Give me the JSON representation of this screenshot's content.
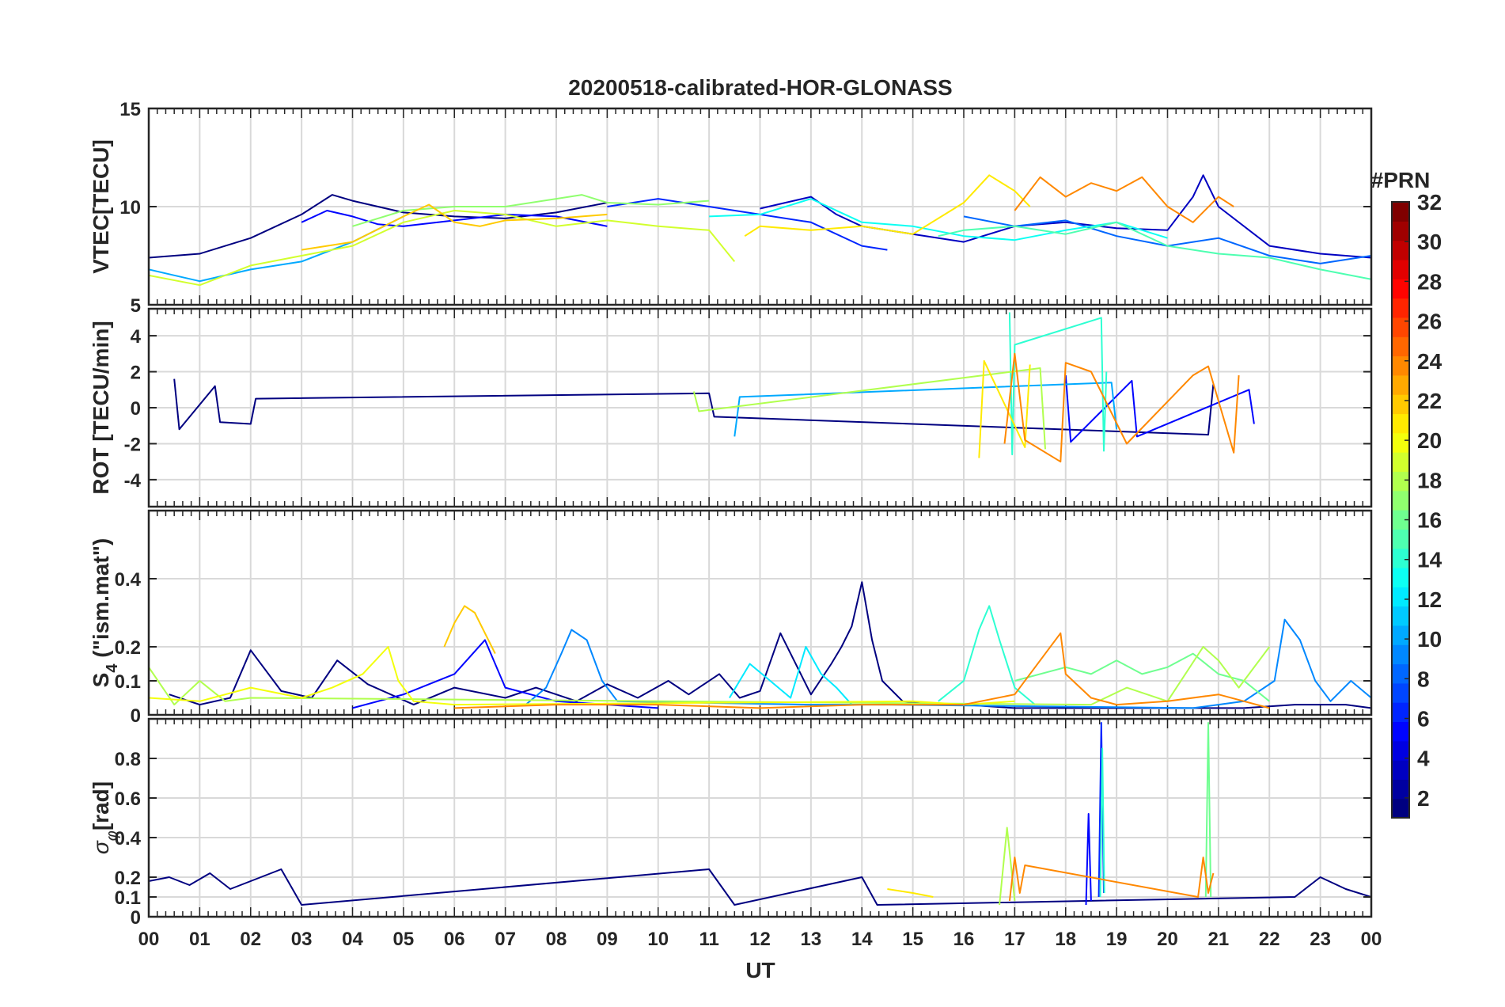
{
  "chart_data": [
    {
      "panel": "vtec",
      "type": "line",
      "title": "20200518-calibrated-HOR-GLONASS",
      "ylabel": "VTEC[TECU]",
      "ylim": [
        5,
        15
      ],
      "yticks": [
        5,
        10,
        15
      ],
      "xlim": [
        0,
        24
      ],
      "grid": true,
      "series": [
        {
          "prn": 1,
          "x": [
            0,
            1,
            2,
            3,
            3.6,
            4,
            5,
            6,
            7,
            8,
            9
          ],
          "y": [
            7.4,
            7.6,
            8.4,
            9.6,
            10.6,
            10.3,
            9.7,
            9.5,
            9.4,
            9.7,
            10.2
          ]
        },
        {
          "prn": 3,
          "x": [
            12,
            12.5,
            13,
            13.5,
            14,
            15,
            16,
            17,
            18,
            19,
            20,
            20.5,
            20.7,
            21,
            22,
            23,
            24
          ],
          "y": [
            9.9,
            10.2,
            10.5,
            9.6,
            9.0,
            8.6,
            8.2,
            9.0,
            9.2,
            8.9,
            8.8,
            10.5,
            11.6,
            10.0,
            8.0,
            7.6,
            7.4
          ]
        },
        {
          "prn": 5,
          "x": [
            3,
            3.5,
            4,
            4.5,
            5,
            6,
            7,
            8,
            9
          ],
          "y": [
            9.2,
            9.8,
            9.5,
            9.1,
            9.0,
            9.3,
            9.6,
            9.5,
            9.0
          ]
        },
        {
          "prn": 6,
          "x": [
            9,
            10,
            11,
            12,
            13,
            14,
            14.5
          ],
          "y": [
            10.0,
            10.4,
            10.0,
            9.6,
            9.2,
            8.0,
            7.8
          ]
        },
        {
          "prn": 8,
          "x": [
            16,
            17,
            18,
            19,
            20,
            21,
            22,
            23,
            24
          ],
          "y": [
            9.5,
            9.0,
            9.3,
            8.5,
            8.0,
            8.4,
            7.5,
            7.1,
            7.5
          ]
        },
        {
          "prn": 10,
          "x": [
            0,
            0.5,
            1,
            2,
            3,
            4,
            5
          ],
          "y": [
            6.8,
            6.5,
            6.2,
            6.8,
            7.2,
            8.2,
            9.5
          ]
        },
        {
          "prn": 13,
          "x": [
            11,
            12,
            13,
            14,
            15,
            16,
            17,
            18,
            19,
            20
          ],
          "y": [
            9.5,
            9.6,
            10.4,
            9.2,
            9.0,
            8.5,
            8.3,
            8.8,
            9.2,
            8.4
          ]
        },
        {
          "prn": 15,
          "x": [
            15.5,
            16,
            17,
            18,
            19,
            20,
            21,
            22,
            23,
            24
          ],
          "y": [
            8.5,
            8.8,
            9.0,
            8.6,
            9.2,
            8.0,
            7.6,
            7.4,
            6.8,
            6.3
          ]
        },
        {
          "prn": 17,
          "x": [
            4,
            5,
            6,
            7,
            8,
            8.5,
            9,
            10,
            11
          ],
          "y": [
            9.0,
            9.8,
            10.0,
            10.0,
            10.4,
            10.6,
            10.2,
            10.1,
            10.3
          ]
        },
        {
          "prn": 19,
          "x": [
            0,
            1,
            2,
            3,
            4,
            5,
            6,
            7,
            8,
            9,
            10,
            11,
            11.5
          ],
          "y": [
            6.5,
            6.0,
            7.0,
            7.5,
            8.0,
            9.2,
            9.8,
            9.6,
            9.0,
            9.3,
            9.0,
            8.8,
            7.2
          ]
        },
        {
          "prn": 21,
          "x": [
            11.7,
            12,
            13,
            14,
            15,
            16,
            16.5,
            17,
            17.3
          ],
          "y": [
            8.5,
            9.0,
            8.8,
            9.0,
            8.6,
            10.2,
            11.6,
            10.8,
            10.0
          ]
        },
        {
          "prn": 22,
          "x": [
            3,
            4,
            5,
            5.5,
            6,
            6.5,
            7,
            8,
            9
          ],
          "y": [
            7.8,
            8.2,
            9.5,
            10.1,
            9.2,
            9.0,
            9.3,
            9.4,
            9.6
          ]
        },
        {
          "prn": 24,
          "x": [
            17,
            17.5,
            18,
            18.5,
            19,
            19.5,
            20,
            20.5,
            21,
            21.3
          ],
          "y": [
            9.8,
            11.5,
            10.5,
            11.2,
            10.8,
            11.5,
            10.0,
            9.2,
            10.5,
            10.0
          ]
        }
      ]
    },
    {
      "panel": "rot",
      "type": "line",
      "ylabel": "ROT [TECU/min]",
      "ylim": [
        -5.5,
        5.5
      ],
      "yticks": [
        -4,
        -2,
        0,
        2,
        4
      ],
      "xlim": [
        0,
        24
      ],
      "grid": true,
      "series": [
        {
          "prn": 1,
          "x": [
            0.5,
            0.6,
            1.3,
            1.4,
            2.0,
            2.1,
            11.0,
            11.1,
            20.8,
            20.9
          ],
          "y": [
            1.6,
            -1.2,
            1.2,
            -0.8,
            -0.9,
            0.5,
            0.8,
            -0.5,
            -1.5,
            1.3
          ]
        },
        {
          "prn": 5,
          "x": [
            18.0,
            18.1,
            19.3,
            19.4,
            21.6,
            21.7
          ],
          "y": [
            1.8,
            -1.9,
            1.5,
            -1.6,
            1.0,
            -0.9
          ]
        },
        {
          "prn": 10,
          "x": [
            11.5,
            11.6,
            18.9,
            19.0
          ],
          "y": [
            -1.6,
            0.6,
            1.4,
            -1.2
          ]
        },
        {
          "prn": 14,
          "x": [
            16.9,
            16.95,
            17.0,
            18.7,
            18.75,
            18.8
          ],
          "y": [
            5.3,
            -2.6,
            3.5,
            5.0,
            -2.4,
            2.0
          ]
        },
        {
          "prn": 18,
          "x": [
            10.7,
            10.8,
            17.5,
            17.6
          ],
          "y": [
            0.9,
            -0.2,
            2.2,
            -2.3
          ]
        },
        {
          "prn": 21,
          "x": [
            16.3,
            16.4,
            17.2,
            17.3
          ],
          "y": [
            -2.8,
            2.6,
            -2.2,
            2.4
          ]
        },
        {
          "prn": 24,
          "x": [
            16.8,
            17.0,
            17.2,
            17.9,
            18.0,
            18.5,
            19.2,
            20.5,
            20.8,
            21.3,
            21.4
          ],
          "y": [
            -2.0,
            3.0,
            -1.8,
            -3.0,
            2.5,
            2.0,
            -2.0,
            1.8,
            2.3,
            -2.5,
            1.8
          ]
        }
      ]
    },
    {
      "panel": "s4",
      "type": "line",
      "ylabel": "S4 (\"ism.mat\")",
      "ylabel_main": "S",
      "ylabel_sub": "4",
      "ylabel_rest": " (\"ism.mat\")",
      "ylim": [
        0,
        0.6
      ],
      "yticks": [
        0,
        0.1,
        0.2,
        0.4
      ],
      "xlim": [
        0,
        24
      ],
      "grid": true,
      "series": [
        {
          "prn": 1,
          "x": [
            0.4,
            1.0,
            1.6,
            2.0,
            2.6,
            3.2,
            3.7,
            4.3,
            5.2,
            6.0,
            7.0,
            7.6,
            8.4,
            9.0,
            9.6,
            10.2,
            10.6,
            11.2,
            11.6,
            12.0,
            12.4,
            13.0,
            13.4,
            13.6,
            13.8,
            14.0,
            14.2,
            14.4,
            14.8,
            15.4,
            16.0,
            17.0,
            18.0,
            19.5,
            20.5,
            21.5,
            22.5,
            23.5,
            24.0
          ],
          "y": [
            0.06,
            0.03,
            0.05,
            0.19,
            0.07,
            0.05,
            0.16,
            0.09,
            0.03,
            0.08,
            0.05,
            0.08,
            0.04,
            0.09,
            0.05,
            0.1,
            0.06,
            0.12,
            0.05,
            0.07,
            0.24,
            0.06,
            0.15,
            0.2,
            0.26,
            0.39,
            0.22,
            0.1,
            0.04,
            0.03,
            0.03,
            0.02,
            0.02,
            0.02,
            0.02,
            0.02,
            0.03,
            0.03,
            0.02
          ]
        },
        {
          "prn": 5,
          "x": [
            4.0,
            5.0,
            6.0,
            6.6,
            7.0,
            8.0,
            9.0,
            10.0
          ],
          "y": [
            0.02,
            0.06,
            0.12,
            0.22,
            0.08,
            0.04,
            0.03,
            0.02
          ]
        },
        {
          "prn": 9,
          "x": [
            7.4,
            7.8,
            8.1,
            8.3,
            8.6,
            8.9,
            9.2,
            13.0,
            14.0,
            14.5,
            20.5,
            21.5,
            22.1,
            22.3,
            22.6,
            22.9,
            23.2,
            23.6,
            24.0
          ],
          "y": [
            0.03,
            0.08,
            0.18,
            0.25,
            0.22,
            0.1,
            0.04,
            0.03,
            0.03,
            0.03,
            0.02,
            0.04,
            0.1,
            0.28,
            0.22,
            0.1,
            0.04,
            0.1,
            0.05
          ]
        },
        {
          "prn": 12,
          "x": [
            11.4,
            11.8,
            12.2,
            12.6,
            12.9,
            13.2,
            13.5,
            13.8
          ],
          "y": [
            0.05,
            0.15,
            0.1,
            0.05,
            0.2,
            0.12,
            0.08,
            0.03
          ]
        },
        {
          "prn": 14,
          "x": [
            15.5,
            16.0,
            16.3,
            16.5,
            16.7,
            17.0,
            17.4
          ],
          "y": [
            0.04,
            0.1,
            0.25,
            0.32,
            0.22,
            0.08,
            0.03
          ]
        },
        {
          "prn": 16,
          "x": [
            17.0,
            18.0,
            18.5,
            19.0,
            19.5,
            20.0,
            20.5,
            21.0,
            21.5,
            22.0
          ],
          "y": [
            0.1,
            0.14,
            0.12,
            0.16,
            0.12,
            0.14,
            0.18,
            0.12,
            0.1,
            0.04
          ]
        },
        {
          "prn": 18,
          "x": [
            0.0,
            0.5,
            1.0,
            1.5,
            2.0,
            18.5,
            19.2,
            20.0,
            20.7,
            21.0,
            21.4,
            22.0
          ],
          "y": [
            0.14,
            0.03,
            0.1,
            0.04,
            0.05,
            0.03,
            0.08,
            0.04,
            0.2,
            0.16,
            0.08,
            0.2
          ]
        },
        {
          "prn": 20,
          "x": [
            0.0,
            1.0,
            2.0,
            3.0,
            3.6,
            4.2,
            4.7,
            4.9,
            5.2,
            6.0,
            15.0,
            16.0,
            17.0
          ],
          "y": [
            0.05,
            0.04,
            0.08,
            0.05,
            0.08,
            0.12,
            0.2,
            0.1,
            0.04,
            0.03,
            0.04,
            0.03,
            0.04
          ]
        },
        {
          "prn": 22,
          "x": [
            5.8,
            6.0,
            6.2,
            6.4,
            6.6,
            6.8
          ],
          "y": [
            0.2,
            0.27,
            0.32,
            0.3,
            0.24,
            0.18
          ]
        },
        {
          "prn": 24,
          "x": [
            6.0,
            8.0,
            10.0,
            12.0,
            14.0,
            16.0,
            17.0,
            17.9,
            18.0,
            18.5,
            19.0,
            20.0,
            21.0,
            22.0
          ],
          "y": [
            0.02,
            0.03,
            0.03,
            0.02,
            0.03,
            0.03,
            0.06,
            0.24,
            0.12,
            0.05,
            0.03,
            0.04,
            0.06,
            0.02
          ]
        }
      ]
    },
    {
      "panel": "sigma_phi",
      "type": "line",
      "ylabel": "σφ[rad]",
      "ylabel_main": "σ",
      "ylabel_sub": "φ",
      "ylabel_rest": "[rad]",
      "xlabel": "UT",
      "ylim": [
        0,
        1.0
      ],
      "yticks": [
        0,
        0.1,
        0.2,
        0.4,
        0.6,
        0.8
      ],
      "xlim": [
        0,
        24
      ],
      "xticks": [
        "00",
        "01",
        "02",
        "03",
        "04",
        "05",
        "06",
        "07",
        "08",
        "09",
        "10",
        "11",
        "12",
        "13",
        "14",
        "15",
        "16",
        "17",
        "18",
        "19",
        "20",
        "21",
        "22",
        "23",
        "00"
      ],
      "grid": true,
      "series": [
        {
          "prn": 1,
          "x": [
            0.0,
            0.4,
            0.8,
            1.2,
            1.6,
            2.0,
            2.6,
            3.0,
            11.0,
            11.5,
            14.0,
            14.3,
            22.5,
            23.0,
            23.5,
            24.0
          ],
          "y": [
            0.18,
            0.2,
            0.16,
            0.22,
            0.14,
            0.18,
            0.24,
            0.06,
            0.24,
            0.06,
            0.2,
            0.06,
            0.1,
            0.2,
            0.14,
            0.1
          ]
        },
        {
          "prn": 5,
          "x": [
            18.4,
            18.45,
            18.5
          ],
          "y": [
            0.06,
            0.52,
            0.08
          ]
        },
        {
          "prn": 6,
          "x": [
            18.65,
            18.7,
            18.75
          ],
          "y": [
            0.1,
            0.98,
            0.12
          ]
        },
        {
          "prn": 14,
          "x": [
            18.68,
            18.72,
            18.76
          ],
          "y": [
            0.1,
            0.85,
            0.12
          ]
        },
        {
          "prn": 16,
          "x": [
            20.75,
            20.8,
            20.85
          ],
          "y": [
            0.1,
            0.98,
            0.1
          ]
        },
        {
          "prn": 18,
          "x": [
            16.7,
            16.85,
            17.0
          ],
          "y": [
            0.06,
            0.45,
            0.08
          ]
        },
        {
          "prn": 21,
          "x": [
            14.5,
            15.0,
            15.4
          ],
          "y": [
            0.14,
            0.12,
            0.1
          ]
        },
        {
          "prn": 24,
          "x": [
            16.9,
            17.0,
            17.1,
            17.2,
            20.6,
            20.7,
            20.8,
            20.9
          ],
          "y": [
            0.08,
            0.3,
            0.12,
            0.26,
            0.1,
            0.3,
            0.12,
            0.22
          ]
        }
      ]
    }
  ],
  "colorbar": {
    "title": "#PRN",
    "min": 1,
    "max": 32,
    "ticks": [
      2,
      4,
      6,
      8,
      10,
      12,
      14,
      16,
      18,
      20,
      22,
      24,
      26,
      28,
      30,
      32
    ],
    "colormap": "jet"
  }
}
